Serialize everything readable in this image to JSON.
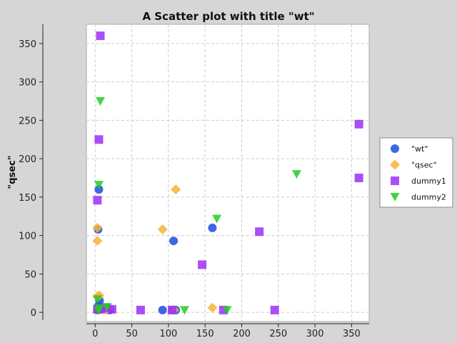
{
  "chart_data": {
    "type": "scatter",
    "title": "A Scatter plot with title \"wt\"",
    "xlabel": "",
    "ylabel": "\"qsec\"",
    "xlim": [
      -12,
      374
    ],
    "ylim": [
      -12,
      375
    ],
    "xticks": [
      0,
      50,
      100,
      150,
      200,
      250,
      300,
      350
    ],
    "yticks": [
      0,
      50,
      100,
      150,
      200,
      250,
      300,
      350
    ],
    "grid": true,
    "legend_position": "right",
    "series": [
      {
        "name": "\"wt\"",
        "color": "#1a4be0",
        "marker": "circle",
        "points": [
          [
            5,
            160
          ],
          [
            4,
            108
          ],
          [
            92,
            3
          ],
          [
            107,
            93
          ],
          [
            106,
            3
          ],
          [
            160,
            110
          ],
          [
            3,
            3
          ],
          [
            4,
            8
          ],
          [
            6,
            15
          ],
          [
            7,
            5
          ],
          [
            18,
            5
          ],
          [
            20,
            3
          ],
          [
            110,
            3
          ]
        ]
      },
      {
        "name": "\"qsec\"",
        "color": "#f5b335",
        "marker": "diamond",
        "points": [
          [
            3,
            110
          ],
          [
            3,
            93
          ],
          [
            92,
            108
          ],
          [
            110,
            160
          ],
          [
            160,
            6
          ],
          [
            108,
            3
          ],
          [
            3,
            21
          ],
          [
            6,
            22
          ],
          [
            16,
            3
          ],
          [
            18,
            5
          ],
          [
            4,
            3
          ]
        ]
      },
      {
        "name": "dummy1",
        "color": "#9b30f5",
        "marker": "square",
        "points": [
          [
            7,
            360
          ],
          [
            5,
            225
          ],
          [
            3,
            146
          ],
          [
            146,
            62
          ],
          [
            224,
            105
          ],
          [
            360,
            245
          ],
          [
            360,
            175
          ],
          [
            245,
            3
          ],
          [
            62,
            3
          ],
          [
            105,
            3
          ],
          [
            175,
            3
          ],
          [
            23,
            4
          ],
          [
            3,
            4
          ],
          [
            6,
            6
          ],
          [
            8,
            4
          ],
          [
            16,
            6
          ]
        ]
      },
      {
        "name": "dummy2",
        "color": "#22cc22",
        "marker": "triangle-down",
        "points": [
          [
            7,
            275
          ],
          [
            5,
            166
          ],
          [
            166,
            122
          ],
          [
            275,
            180
          ],
          [
            122,
            3
          ],
          [
            180,
            3
          ],
          [
            3,
            17
          ],
          [
            4,
            3
          ],
          [
            16,
            7
          ],
          [
            6,
            5
          ]
        ]
      }
    ]
  }
}
